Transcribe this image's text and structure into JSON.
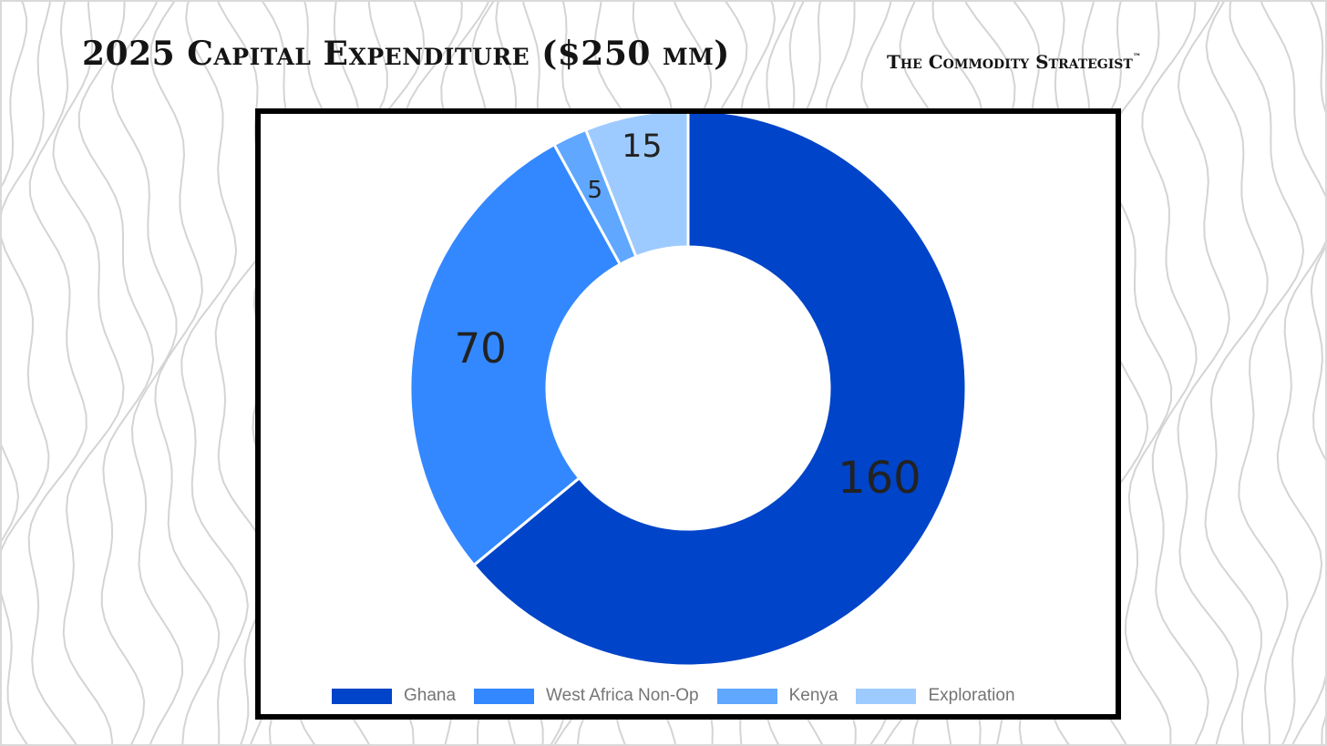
{
  "header": {
    "title": "2025 Capital Expenditure ($250 mm)",
    "brand": "The Commodity Strategist",
    "brand_mark": "™"
  },
  "chart_data": {
    "type": "pie",
    "donut": true,
    "title": "2025 Capital Expenditure ($250 mm)",
    "units": "$ mm",
    "total": 250,
    "categories": [
      "Ghana",
      "West Africa Non-Op",
      "Kenya",
      "Exploration"
    ],
    "values": [
      160,
      70,
      5,
      15
    ],
    "colors": [
      "#0044c9",
      "#3388ff",
      "#5fa7ff",
      "#9ecbff"
    ],
    "data_labels": [
      "160",
      "70",
      "5",
      "15"
    ],
    "legend_position": "bottom",
    "start": "top, clockwise"
  }
}
